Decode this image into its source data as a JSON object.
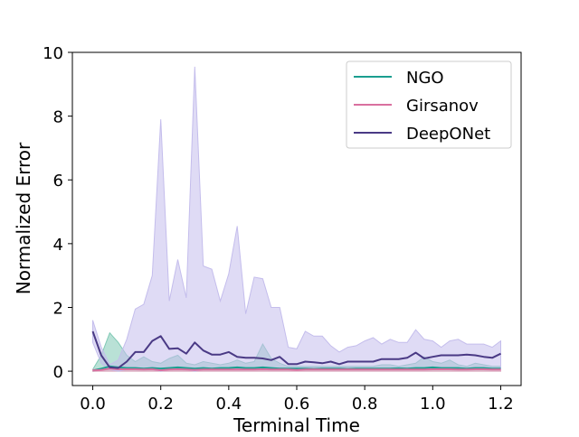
{
  "chart_data": {
    "type": "line",
    "title": "",
    "xlabel": "Terminal Time",
    "ylabel": "Normalized Error",
    "xlim": [
      -0.06,
      1.26
    ],
    "ylim": [
      -0.45,
      10
    ],
    "xticks": [
      0.0,
      0.2,
      0.4,
      0.6,
      0.8,
      1.0,
      1.2
    ],
    "xtick_labels": [
      "0.0",
      "0.2",
      "0.4",
      "0.6",
      "0.8",
      "1.0",
      "1.2"
    ],
    "yticks": [
      0,
      2,
      4,
      6,
      8,
      10
    ],
    "ytick_labels": [
      "0",
      "2",
      "4",
      "6",
      "8",
      "10"
    ],
    "grid": false,
    "legend_position": "top-right",
    "x": [
      0.0,
      0.025,
      0.05,
      0.075,
      0.1,
      0.125,
      0.15,
      0.175,
      0.2,
      0.225,
      0.25,
      0.275,
      0.3,
      0.325,
      0.35,
      0.375,
      0.4,
      0.425,
      0.45,
      0.475,
      0.5,
      0.525,
      0.55,
      0.575,
      0.6,
      0.625,
      0.65,
      0.675,
      0.7,
      0.725,
      0.75,
      0.775,
      0.8,
      0.825,
      0.85,
      0.875,
      0.9,
      0.925,
      0.95,
      0.975,
      1.0,
      1.025,
      1.05,
      1.075,
      1.1,
      1.125,
      1.15,
      1.175,
      1.2
    ],
    "series": [
      {
        "name": "NGO",
        "color": "#1a9e8f",
        "band_color": "#80c9b5",
        "values": [
          0.02,
          0.08,
          0.15,
          0.12,
          0.1,
          0.1,
          0.08,
          0.1,
          0.08,
          0.1,
          0.12,
          0.1,
          0.08,
          0.1,
          0.08,
          0.1,
          0.1,
          0.12,
          0.1,
          0.1,
          0.12,
          0.1,
          0.08,
          0.08,
          0.08,
          0.08,
          0.07,
          0.08,
          0.08,
          0.08,
          0.07,
          0.08,
          0.08,
          0.08,
          0.08,
          0.08,
          0.09,
          0.08,
          0.1,
          0.1,
          0.12,
          0.1,
          0.1,
          0.1,
          0.08,
          0.1,
          0.1,
          0.08,
          0.08
        ],
        "upper": [
          0.05,
          0.5,
          1.2,
          0.9,
          0.5,
          0.3,
          0.45,
          0.3,
          0.25,
          0.4,
          0.5,
          0.25,
          0.2,
          0.3,
          0.25,
          0.2,
          0.25,
          0.35,
          0.25,
          0.3,
          0.85,
          0.4,
          0.25,
          0.15,
          0.15,
          0.15,
          0.15,
          0.15,
          0.15,
          0.15,
          0.15,
          0.15,
          0.15,
          0.15,
          0.2,
          0.2,
          0.15,
          0.2,
          0.25,
          0.45,
          0.3,
          0.25,
          0.35,
          0.2,
          0.15,
          0.25,
          0.2,
          0.15,
          0.15
        ],
        "lower": [
          0.0,
          0.0,
          0.0,
          0.0,
          0.0,
          0.0,
          0.0,
          0.0,
          0.0,
          0.0,
          0.0,
          0.0,
          0.0,
          0.0,
          0.0,
          0.0,
          0.0,
          0.0,
          0.0,
          0.0,
          0.0,
          0.0,
          0.0,
          0.0,
          0.0,
          0.0,
          0.0,
          0.0,
          0.0,
          0.0,
          0.0,
          0.0,
          0.0,
          0.0,
          0.0,
          0.0,
          0.0,
          0.0,
          0.0,
          0.0,
          0.0,
          0.0,
          0.0,
          0.0,
          0.0,
          0.0,
          0.0,
          0.0,
          0.0
        ]
      },
      {
        "name": "Girsanov",
        "color": "#d9709f",
        "band_color": "#e9a9c4",
        "values": [
          0.02,
          0.04,
          0.08,
          0.06,
          0.06,
          0.06,
          0.05,
          0.06,
          0.03,
          0.05,
          0.06,
          0.05,
          0.04,
          0.05,
          0.05,
          0.05,
          0.05,
          0.05,
          0.05,
          0.05,
          0.06,
          0.05,
          0.05,
          0.05,
          0.04,
          0.05,
          0.05,
          0.05,
          0.05,
          0.05,
          0.05,
          0.05,
          0.05,
          0.05,
          0.05,
          0.05,
          0.05,
          0.05,
          0.05,
          0.05,
          0.06,
          0.06,
          0.06,
          0.05,
          0.05,
          0.06,
          0.06,
          0.05,
          0.05
        ],
        "upper": [
          0.05,
          0.08,
          0.15,
          0.12,
          0.12,
          0.12,
          0.1,
          0.12,
          0.08,
          0.1,
          0.12,
          0.1,
          0.08,
          0.1,
          0.1,
          0.1,
          0.1,
          0.1,
          0.1,
          0.1,
          0.12,
          0.1,
          0.1,
          0.1,
          0.08,
          0.1,
          0.1,
          0.1,
          0.1,
          0.1,
          0.1,
          0.1,
          0.1,
          0.1,
          0.1,
          0.1,
          0.1,
          0.1,
          0.1,
          0.1,
          0.12,
          0.12,
          0.12,
          0.1,
          0.1,
          0.12,
          0.12,
          0.1,
          0.1
        ],
        "lower": [
          0.0,
          0.0,
          0.0,
          0.0,
          0.0,
          0.0,
          0.0,
          0.0,
          0.0,
          0.0,
          0.0,
          0.0,
          0.0,
          0.0,
          0.0,
          0.0,
          0.0,
          0.0,
          0.0,
          0.0,
          0.0,
          0.0,
          0.0,
          0.0,
          0.0,
          0.0,
          0.0,
          0.0,
          0.0,
          0.0,
          0.0,
          0.0,
          0.0,
          0.0,
          0.0,
          0.0,
          0.0,
          0.0,
          0.0,
          0.0,
          0.0,
          0.0,
          0.0,
          0.0,
          0.0,
          0.0,
          0.0,
          0.0,
          0.0
        ]
      },
      {
        "name": "DeepONet",
        "color": "#4a3a85",
        "band_color": "#c4bdec",
        "values": [
          1.25,
          0.5,
          0.12,
          0.1,
          0.3,
          0.6,
          0.6,
          0.95,
          1.1,
          0.7,
          0.72,
          0.55,
          0.9,
          0.65,
          0.52,
          0.52,
          0.6,
          0.45,
          0.42,
          0.42,
          0.4,
          0.35,
          0.45,
          0.22,
          0.22,
          0.3,
          0.28,
          0.25,
          0.3,
          0.22,
          0.3,
          0.3,
          0.3,
          0.3,
          0.38,
          0.38,
          0.38,
          0.42,
          0.58,
          0.4,
          0.45,
          0.5,
          0.5,
          0.5,
          0.52,
          0.5,
          0.45,
          0.42,
          0.55
        ],
        "upper": [
          1.6,
          0.75,
          0.2,
          0.35,
          1.0,
          1.95,
          2.1,
          3.0,
          7.9,
          2.2,
          3.5,
          2.3,
          9.55,
          3.3,
          3.2,
          2.2,
          3.05,
          4.55,
          1.8,
          2.95,
          2.9,
          2.0,
          2.0,
          0.75,
          0.7,
          1.25,
          1.1,
          1.1,
          0.8,
          0.6,
          0.75,
          0.8,
          0.95,
          1.05,
          0.85,
          1.0,
          0.9,
          0.9,
          1.3,
          1.0,
          0.95,
          0.75,
          0.95,
          1.0,
          0.85,
          0.85,
          0.85,
          0.75,
          0.95
        ],
        "lower": [
          0.9,
          0.25,
          0.05,
          0.0,
          0.05,
          0.05,
          0.05,
          0.05,
          0.0,
          0.05,
          0.05,
          0.05,
          0.0,
          0.05,
          0.05,
          0.05,
          0.05,
          0.05,
          0.05,
          0.05,
          0.05,
          0.05,
          0.05,
          0.05,
          0.05,
          0.05,
          0.05,
          0.05,
          0.05,
          0.05,
          0.05,
          0.05,
          0.05,
          0.05,
          0.05,
          0.05,
          0.05,
          0.05,
          0.05,
          0.05,
          0.05,
          0.05,
          0.05,
          0.05,
          0.05,
          0.05,
          0.05,
          0.05,
          0.05
        ]
      }
    ]
  }
}
